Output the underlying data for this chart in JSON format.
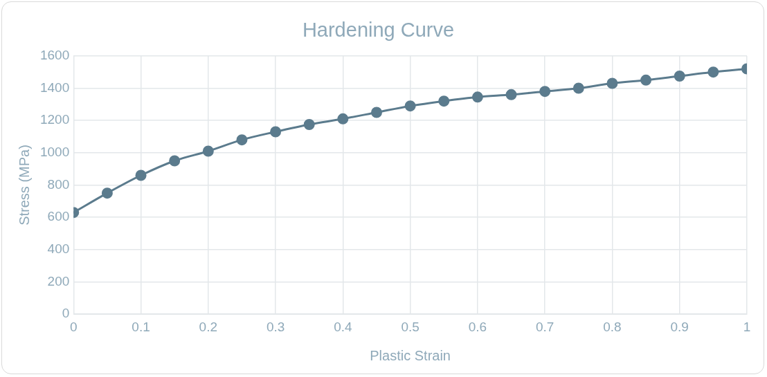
{
  "chart_data": {
    "type": "line",
    "title": "Hardening Curve",
    "xlabel": "Plastic Strain",
    "ylabel": "Stress (MPa)",
    "x": [
      0,
      0.05,
      0.1,
      0.15,
      0.2,
      0.25,
      0.3,
      0.35,
      0.4,
      0.45,
      0.5,
      0.55,
      0.6,
      0.65,
      0.7,
      0.75,
      0.8,
      0.85,
      0.9,
      0.95,
      1
    ],
    "series": [
      {
        "color": "#5b7b8d",
        "values": [
          630,
          750,
          860,
          950,
          1010,
          1080,
          1130,
          1175,
          1210,
          1250,
          1290,
          1320,
          1345,
          1360,
          1380,
          1400,
          1430,
          1450,
          1475,
          1500,
          1520
        ]
      }
    ],
    "xlim": [
      0,
      1
    ],
    "xticks": [
      0,
      0.1,
      0.2,
      0.3,
      0.4,
      0.5,
      0.6,
      0.7,
      0.8,
      0.9,
      1
    ],
    "ylim": [
      0,
      1600
    ],
    "yticks": [
      0,
      200,
      400,
      600,
      800,
      1000,
      1200,
      1400,
      1600
    ],
    "grid": true,
    "legend": false,
    "marker": "circle",
    "line_style": "solid"
  }
}
